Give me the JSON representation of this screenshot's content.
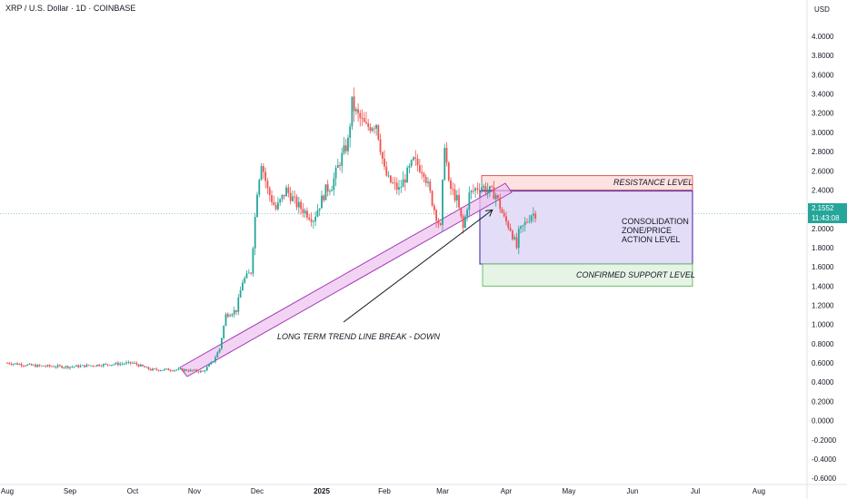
{
  "header": {
    "title": "XRP / U.S. Dollar · 1D · COINBASE",
    "currency": "USD"
  },
  "price_tag": {
    "price": "2.1552",
    "countdown": "11:43:08"
  },
  "colors": {
    "up": "#26a69a",
    "down": "#ef5350",
    "resistance_fill": "#fde2e2",
    "resistance_border": "#e05a5a",
    "zone_fill": "#e4ddf7",
    "zone_border": "#5b3fb8",
    "support_fill": "#e6f4e6",
    "support_border": "#6abf69",
    "trendline_fill": "#eec4f0",
    "trendline_border": "#a43bb5"
  },
  "chart_data": {
    "type": "candlestick",
    "title": "XRP / U.S. Dollar · 1D · COINBASE",
    "y_axis": {
      "ticks": [
        "4.0000",
        "3.8000",
        "3.6000",
        "3.4000",
        "3.2000",
        "3.0000",
        "2.8000",
        "2.6000",
        "2.4000",
        "2.2000",
        "2.0000",
        "1.8000",
        "1.6000",
        "1.4000",
        "1.2000",
        "1.0000",
        "0.8000",
        "0.6000",
        "0.4000",
        "0.2000",
        "0.0000",
        "-0.2000",
        "-0.4000",
        "-0.6000"
      ],
      "range": [
        -0.62,
        4.2
      ]
    },
    "x_axis": {
      "ticks": [
        "Aug",
        "Sep",
        "Oct",
        "Nov",
        "Dec",
        "2025",
        "Feb",
        "Mar",
        "Apr",
        "May",
        "Jun",
        "Jul",
        "Aug"
      ]
    },
    "current_price": 2.1552,
    "close_series": [
      {
        "date": "2024-08-01",
        "close": 0.6
      },
      {
        "date": "2024-08-15",
        "close": 0.57
      },
      {
        "date": "2024-09-01",
        "close": 0.56
      },
      {
        "date": "2024-09-15",
        "close": 0.58
      },
      {
        "date": "2024-10-01",
        "close": 0.6
      },
      {
        "date": "2024-10-10",
        "close": 0.53
      },
      {
        "date": "2024-10-25",
        "close": 0.53
      },
      {
        "date": "2024-11-05",
        "close": 0.51
      },
      {
        "date": "2024-11-10",
        "close": 0.62
      },
      {
        "date": "2024-11-13",
        "close": 0.75
      },
      {
        "date": "2024-11-16",
        "close": 1.1
      },
      {
        "date": "2024-11-21",
        "close": 1.15
      },
      {
        "date": "2024-11-24",
        "close": 1.45
      },
      {
        "date": "2024-11-28",
        "close": 1.55
      },
      {
        "date": "2024-12-01",
        "close": 2.4
      },
      {
        "date": "2024-12-03",
        "close": 2.7
      },
      {
        "date": "2024-12-06",
        "close": 2.4
      },
      {
        "date": "2024-12-10",
        "close": 2.2
      },
      {
        "date": "2024-12-15",
        "close": 2.4
      },
      {
        "date": "2024-12-20",
        "close": 2.25
      },
      {
        "date": "2024-12-28",
        "close": 2.1
      },
      {
        "date": "2025-01-03",
        "close": 2.4
      },
      {
        "date": "2025-01-06",
        "close": 2.45
      },
      {
        "date": "2025-01-10",
        "close": 2.7
      },
      {
        "date": "2025-01-14",
        "close": 2.9
      },
      {
        "date": "2025-01-16",
        "close": 3.3
      },
      {
        "date": "2025-01-18",
        "close": 3.2
      },
      {
        "date": "2025-01-23",
        "close": 3.05
      },
      {
        "date": "2025-01-28",
        "close": 3.1
      },
      {
        "date": "2025-02-01",
        "close": 2.6
      },
      {
        "date": "2025-02-03",
        "close": 2.5
      },
      {
        "date": "2025-02-08",
        "close": 2.4
      },
      {
        "date": "2025-02-15",
        "close": 2.7
      },
      {
        "date": "2025-02-20",
        "close": 2.6
      },
      {
        "date": "2025-02-25",
        "close": 2.2
      },
      {
        "date": "2025-02-28",
        "close": 2.0
      },
      {
        "date": "2025-03-02",
        "close": 2.9
      },
      {
        "date": "2025-03-04",
        "close": 2.45
      },
      {
        "date": "2025-03-08",
        "close": 2.3
      },
      {
        "date": "2025-03-11",
        "close": 2.0
      },
      {
        "date": "2025-03-14",
        "close": 2.35
      },
      {
        "date": "2025-03-19",
        "close": 2.45
      },
      {
        "date": "2025-03-23",
        "close": 2.4
      },
      {
        "date": "2025-03-27",
        "close": 2.35
      },
      {
        "date": "2025-03-31",
        "close": 2.1
      },
      {
        "date": "2025-04-03",
        "close": 2.0
      },
      {
        "date": "2025-04-06",
        "close": 1.8
      },
      {
        "date": "2025-04-07",
        "close": 1.95
      },
      {
        "date": "2025-04-10",
        "close": 2.05
      },
      {
        "date": "2025-04-13",
        "close": 2.15
      },
      {
        "date": "2025-04-15",
        "close": 2.1552
      }
    ]
  },
  "annotations": {
    "resistance_label": "RESISTANCE LEVEL",
    "consolidation_line1": "CONSOLIDATION",
    "consolidation_line2": "ZONE/PRICE",
    "consolidation_line3": "ACTION LEVEL",
    "support_label": "CONFIRMED SUPPORT LEVEL",
    "trendline_label": "LONG TERM TREND LINE BREAK - DOWN"
  },
  "levels": {
    "resistance": [
      2.4,
      2.55
    ],
    "consolidation": [
      1.63,
      2.39
    ],
    "support": [
      1.4,
      1.63
    ]
  }
}
